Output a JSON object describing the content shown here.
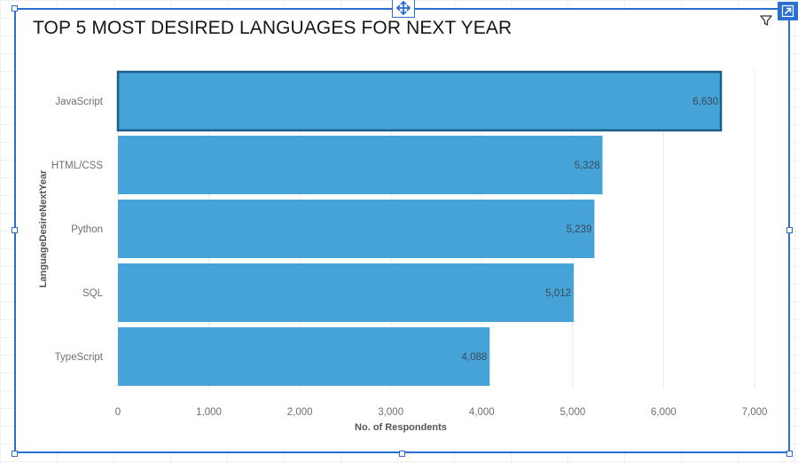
{
  "chart_data": {
    "type": "bar",
    "orientation": "horizontal",
    "title": "TOP 5 MOST DESIRED LANGUAGES FOR NEXT YEAR",
    "xlabel": "No. of Respondents",
    "ylabel": "LanguageDesireNextYear",
    "categories": [
      "JavaScript",
      "HTML/CSS",
      "Python",
      "SQL",
      "TypeScript"
    ],
    "values": [
      6630,
      5328,
      5239,
      5012,
      4088
    ],
    "value_labels": [
      "6,630",
      "5,328",
      "5,239",
      "5,012",
      "4,088"
    ],
    "xlim": [
      0,
      7000
    ],
    "x_ticks": [
      0,
      1000,
      2000,
      3000,
      4000,
      5000,
      6000,
      7000
    ],
    "x_tick_labels": [
      "0",
      "1,000",
      "2,000",
      "3,000",
      "4,000",
      "5,000",
      "6,000",
      "7,000"
    ],
    "grid": true,
    "selected_category": "JavaScript",
    "colors": {
      "bar": "#45a3d8",
      "selected_border": "#1c5e8a",
      "grid": "#e6e9ec",
      "text": "#6f6f6f",
      "label_dark": "#3c4a55"
    }
  },
  "ui": {
    "accent": "#2a6fd1",
    "icons": {
      "move": "move-arrows-icon",
      "expand": "expand-arrow-icon",
      "filter": "filter-icon"
    }
  }
}
